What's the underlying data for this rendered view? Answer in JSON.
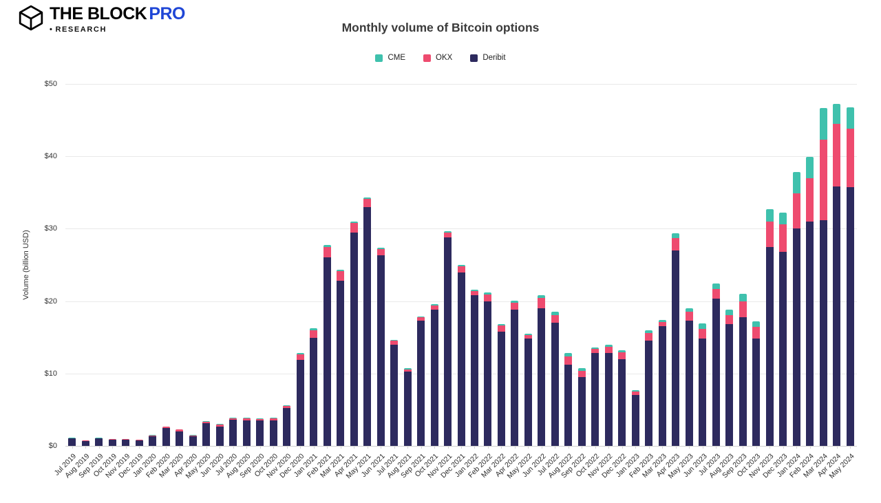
{
  "brand": {
    "title": "THE BLOCK",
    "pro": "PRO",
    "research_bullet": "•",
    "research": "RESEARCH"
  },
  "chart_data": {
    "type": "bar",
    "stacked": true,
    "title": "Monthly volume of Bitcoin options",
    "xlabel": "",
    "ylabel": "Volume (billion USD)",
    "ylim": [
      0,
      50
    ],
    "yticks": [
      "$0",
      "$10",
      "$20",
      "$30",
      "$40",
      "$50"
    ],
    "grid": true,
    "legend_position": "top-center",
    "categories": [
      "Jul 2019",
      "Aug 2019",
      "Sep 2019",
      "Oct 2019",
      "Nov 2019",
      "Dec 2019",
      "Jan 2020",
      "Feb 2020",
      "Mar 2020",
      "Apr 2020",
      "May 2020",
      "Jun 2020",
      "Jul 2020",
      "Aug 2020",
      "Sep 2020",
      "Oct 2020",
      "Nov 2020",
      "Dec 2020",
      "Jan 2021",
      "Feb 2021",
      "Mar 2021",
      "Apr 2021",
      "May 2021",
      "Jun 2021",
      "Jul 2021",
      "Aug 2021",
      "Sep 2021",
      "Oct 2021",
      "Nov 2021",
      "Dec 2021",
      "Jan 2022",
      "Feb 2022",
      "Mar 2022",
      "Apr 2022",
      "May 2022",
      "Jun 2022",
      "Jul 2022",
      "Aug 2022",
      "Sep 2022",
      "Oct 2022",
      "Nov 2022",
      "Dec 2022",
      "Jan 2023",
      "Feb 2023",
      "Mar 2023",
      "Apr 2023",
      "May 2023",
      "Jun 2023",
      "Jul 2023",
      "Aug 2023",
      "Sep 2023",
      "Oct 2023",
      "Nov 2023",
      "Dec 2023",
      "Jan 2024",
      "Feb 2024",
      "Mar 2024",
      "Apr 2024",
      "May 2024"
    ],
    "series": [
      {
        "name": "CME",
        "color": "#3fc1ad",
        "values": [
          0.02,
          0.03,
          0.02,
          0.03,
          0.03,
          0.04,
          0.05,
          0.05,
          0.05,
          0.03,
          0.05,
          0.05,
          0.05,
          0.1,
          0.05,
          0.05,
          0.1,
          0.2,
          0.3,
          0.3,
          0.2,
          0.2,
          0.2,
          0.2,
          0.1,
          0.1,
          0.1,
          0.2,
          0.2,
          0.2,
          0.2,
          0.3,
          0.2,
          0.3,
          0.2,
          0.4,
          0.4,
          0.4,
          0.3,
          0.2,
          0.3,
          0.3,
          0.2,
          0.4,
          0.3,
          0.7,
          0.5,
          0.7,
          0.7,
          0.7,
          1.0,
          0.8,
          1.7,
          1.6,
          2.9,
          2.9,
          4.4,
          2.7,
          3.0
        ]
      },
      {
        "name": "OKX",
        "color": "#ee4b6f",
        "values": [
          0.08,
          0.07,
          0.08,
          0.07,
          0.07,
          0.06,
          0.1,
          0.15,
          0.25,
          0.12,
          0.25,
          0.25,
          0.25,
          0.3,
          0.25,
          0.35,
          0.3,
          0.7,
          1.1,
          1.5,
          1.3,
          1.3,
          1.1,
          0.9,
          0.5,
          0.3,
          0.5,
          0.6,
          0.7,
          0.8,
          0.6,
          0.9,
          0.8,
          1.0,
          0.5,
          1.4,
          1.1,
          1.2,
          0.9,
          0.6,
          0.9,
          0.9,
          0.5,
          1.1,
          0.6,
          1.7,
          1.2,
          1.4,
          1.4,
          1.3,
          2.2,
          1.6,
          3.5,
          3.8,
          4.9,
          6.0,
          11.1,
          8.7,
          8.1
        ]
      },
      {
        "name": "Deribit",
        "color": "#2d2a5e",
        "values": [
          1.0,
          0.7,
          1.0,
          0.9,
          0.9,
          0.8,
          1.35,
          2.5,
          2.0,
          1.35,
          3.1,
          2.7,
          3.6,
          3.5,
          3.5,
          3.5,
          5.2,
          11.9,
          14.9,
          26.0,
          22.8,
          29.5,
          33.0,
          26.3,
          14.0,
          10.3,
          17.3,
          18.8,
          28.8,
          24.0,
          20.8,
          20.0,
          15.8,
          18.8,
          14.8,
          19.0,
          17.0,
          11.2,
          9.5,
          12.8,
          12.8,
          12.0,
          7.0,
          14.5,
          16.5,
          27.0,
          17.3,
          14.8,
          20.3,
          16.8,
          17.8,
          14.8,
          27.5,
          26.8,
          30.0,
          31.0,
          31.2,
          35.8,
          35.7
        ]
      }
    ]
  }
}
